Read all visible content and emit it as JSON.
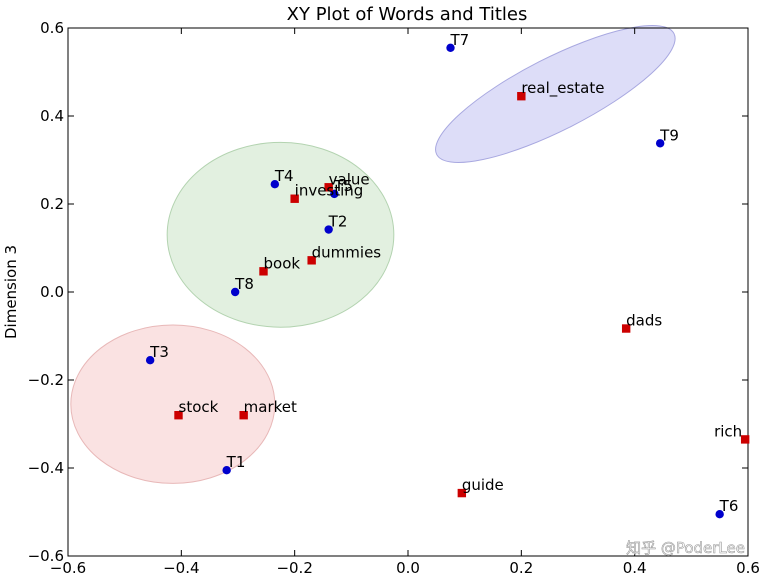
{
  "chart_data": {
    "type": "scatter",
    "title": "XY Plot of Words and Titles",
    "xlabel": "",
    "ylabel": "Dimension 3",
    "xlim": [
      -0.6,
      0.6
    ],
    "ylim": [
      -0.6,
      0.6
    ],
    "xticks": [
      "−0.6",
      "−0.4",
      "−0.2",
      "0.0",
      "0.2",
      "0.4",
      "0.6"
    ],
    "yticks": [
      "−0.6",
      "−0.4",
      "−0.2",
      "0.0",
      "0.2",
      "0.4",
      "0.6"
    ],
    "grid": false,
    "series": [
      {
        "marker": "circle",
        "color": "#0000cc",
        "points": [
          {
            "label": "T1",
            "x": -0.32,
            "y": -0.405
          },
          {
            "label": "T2",
            "x": -0.14,
            "y": 0.142
          },
          {
            "label": "T3",
            "x": -0.455,
            "y": -0.155
          },
          {
            "label": "T4",
            "x": -0.235,
            "y": 0.245
          },
          {
            "label": "T5",
            "x": -0.13,
            "y": 0.223
          },
          {
            "label": "T6",
            "x": 0.55,
            "y": -0.505
          },
          {
            "label": "T7",
            "x": 0.075,
            "y": 0.555
          },
          {
            "label": "T8",
            "x": -0.305,
            "y": 0.0
          },
          {
            "label": "T9",
            "x": 0.445,
            "y": 0.338
          }
        ]
      },
      {
        "marker": "square",
        "color": "#cc0000",
        "points": [
          {
            "label": "real_estate",
            "x": 0.2,
            "y": 0.445
          },
          {
            "label": "value",
            "x": -0.14,
            "y": 0.238
          },
          {
            "label": "investing",
            "x": -0.2,
            "y": 0.212
          },
          {
            "label": "dummies",
            "x": -0.17,
            "y": 0.072
          },
          {
            "label": "book",
            "x": -0.255,
            "y": 0.047
          },
          {
            "label": "stock",
            "x": -0.405,
            "y": -0.28
          },
          {
            "label": "market",
            "x": -0.29,
            "y": -0.28
          },
          {
            "label": "dads",
            "x": 0.385,
            "y": -0.083
          },
          {
            "label": "rich",
            "x": 0.595,
            "y": -0.335
          },
          {
            "label": "guide",
            "x": 0.095,
            "y": -0.457
          }
        ]
      }
    ],
    "clusters": [
      {
        "name": "cluster-blue",
        "cx": 0.26,
        "cy": 0.45,
        "rx": 0.235,
        "ry": 0.082,
        "angle": -27,
        "fill": "#d2d2f6",
        "stroke": "#a8a8e0"
      },
      {
        "name": "cluster-green",
        "cx": -0.225,
        "cy": 0.13,
        "rx": 0.2,
        "ry": 0.21,
        "angle": 0,
        "fill": "#d8ebd6",
        "stroke": "#b3d3b0"
      },
      {
        "name": "cluster-red",
        "cx": -0.415,
        "cy": -0.255,
        "rx": 0.18,
        "ry": 0.18,
        "angle": 0,
        "fill": "#f8d8d8",
        "stroke": "#e8b8b8"
      }
    ]
  },
  "watermark": {
    "text": "知乎 @PoderLee",
    "icon": "zhihu-logo"
  }
}
